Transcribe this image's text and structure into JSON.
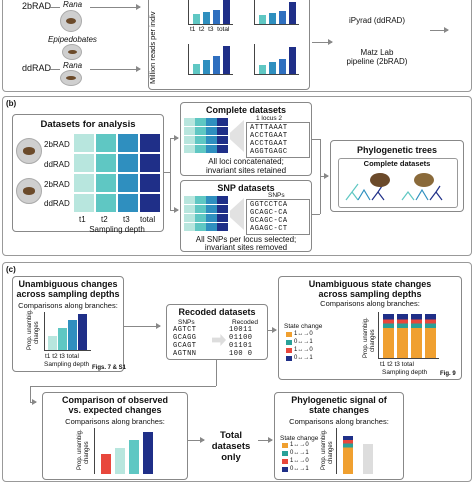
{
  "colors": {
    "dark": "#1f2f88",
    "mid": "#2f8fbf",
    "light": "#5fc7c3",
    "pale": "#b8e6de",
    "red": "#e8473c",
    "orange": "#f0a030",
    "teal": "#2aa198"
  },
  "panel_a": {
    "label_2brad": "2bRAD",
    "label_ddrad": "ddRAD",
    "genus_rana_top": "Rana",
    "genus_epi": "Epipedobates",
    "genus_rana_bottom": "Rana",
    "ylabel": "Million reads per indiv",
    "ticks": [
      "t1",
      "t2",
      "t3",
      "total"
    ],
    "pipeline_ddrad": "iPyrad (ddRAD)",
    "pipeline_2brad_1": "Matz Lab",
    "pipeline_2brad_2": "pipeline (2bRAD)"
  },
  "panel_b": {
    "tag": "(b)",
    "title": "Datasets for analysis",
    "rows": [
      "2bRAD",
      "ddRAD",
      "2bRAD",
      "ddRAD"
    ],
    "cols": [
      "t1",
      "t2",
      "t3",
      "total"
    ],
    "xlabel": "Sampling depth",
    "complete_title": "Complete datasets",
    "locus_header": "1   locus   2",
    "seq": [
      "ATTTAAAT",
      "ACCTGAAT",
      "ACCTGAAT",
      "AGGTGAGC"
    ],
    "complete_note_1": "All loci concatenated;",
    "complete_note_2": "invariant sites retained",
    "snp_title": "SNP datasets",
    "snp_header": "SNPs",
    "snp_seq": [
      "GGTCCTCA",
      "GCAGC-CA",
      "GCAGC-CA",
      "AGAGC-CT"
    ],
    "snp_note_1": "All SNPs per locus selected;",
    "snp_note_2": "invariant sites removed",
    "phylo_title": "Phylogenetic trees",
    "phylo_sub": "Complete datasets"
  },
  "panel_c": {
    "tag": "(c)",
    "box1_title_1": "Unambiguous changes",
    "box1_title_2": "across sampling depths",
    "box1_sub": "Comparisons along branches:",
    "box1_ylabel_1": "Prop. unambig.",
    "box1_ylabel_2": "changes",
    "box1_ticks": "t1  t2  t3 total",
    "box1_xlabel": "Sampling depth",
    "box1_fig": "Figs. 7 & S1",
    "box2_title": "Recoded datasets",
    "box2_col1": "SNPs",
    "box2_col2": "Recoded",
    "box2_snps": [
      "AGTCT",
      "GCAGG",
      "GCAGT",
      "AGTNN"
    ],
    "box2_recoded": [
      "10011",
      "01100",
      "01101",
      "100 0"
    ],
    "box3_title_1": "Unambiguous state changes",
    "box3_title_2": "across sampling depths",
    "box3_sub": "Comparisons along branches:",
    "box3_legend_title": "State change",
    "box3_legend": [
      "1↔→0",
      "0↔→1",
      "1↔→0",
      "0↔→1"
    ],
    "box3_ylabel_1": "Prop. unambig.",
    "box3_ylabel_2": "changes",
    "box3_ticks": "t1  t2  t3  total",
    "box3_xlabel": "Sampling depth",
    "box3_fig": "Fig. 9",
    "box4_title_1": "Comparison of observed",
    "box4_title_2": "vs. expected changes",
    "box4_sub": "Comparisons along branches:",
    "box4_ylabel_1": "Prop. unambig.",
    "box4_ylabel_2": "changes",
    "box5_title_1": "Total",
    "box5_title_2": "datasets",
    "box5_title_3": "only",
    "box6_title_1": "Phylogenetic signal of",
    "box6_title_2": "state changes",
    "box6_sub": "Comparisons along branches:",
    "box6_legend_title": "State change",
    "box6_legend": [
      "1↔→0",
      "0↔→1",
      "1↔→0",
      "0↔→1"
    ],
    "box6_ylabel_1": "Prop. unambig.",
    "box6_ylabel_2": "changes"
  }
}
